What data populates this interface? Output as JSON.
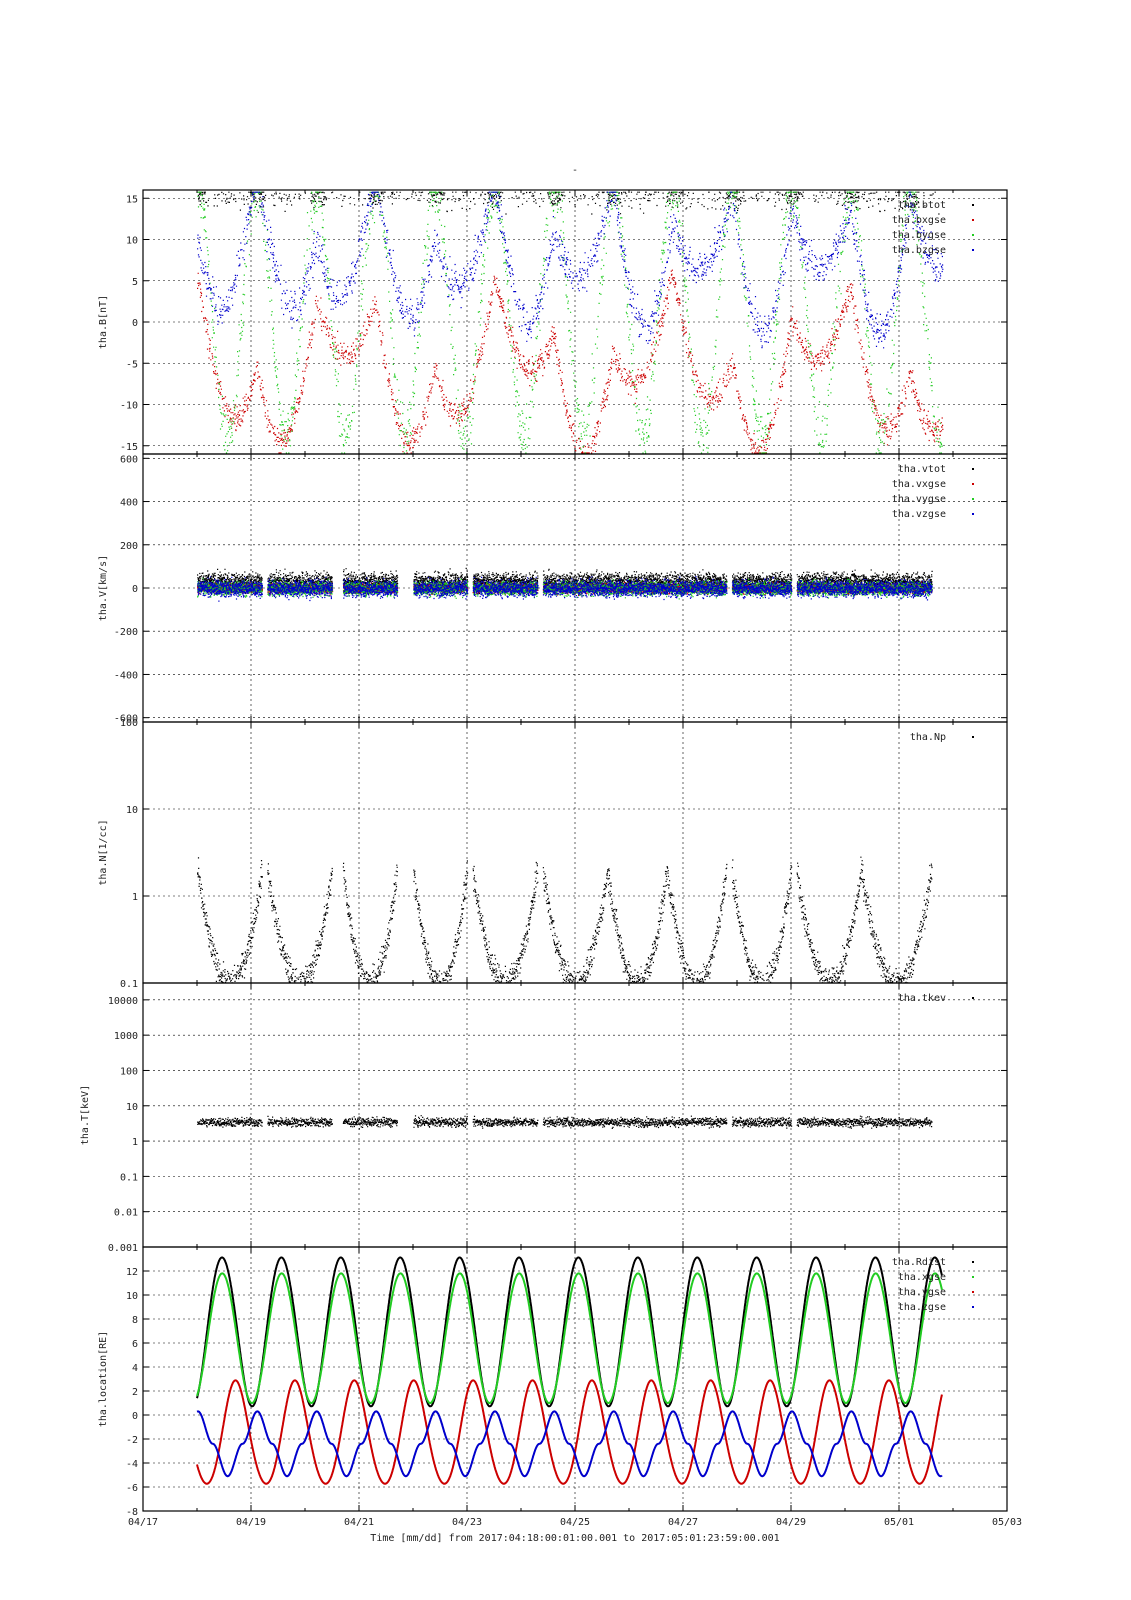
{
  "page": {
    "title": "-"
  },
  "footer": {
    "xlabel": "Time [mm/dd]  from 2017:04:18:00:01:00.001  to  2017:05:01:23:59:00.001"
  },
  "colors": {
    "black": "#000000",
    "red": "#cc0000",
    "green": "#22cc22",
    "blue": "#0000cc"
  },
  "chart_data": [
    {
      "id": "panel-b",
      "type": "scatter",
      "ylabel": "tha.B[nT]",
      "ylim": [
        -16,
        16
      ],
      "yscale": "linear",
      "yticks": [
        -15,
        -10,
        -5,
        0,
        5,
        10,
        15
      ],
      "grid": true,
      "legend_position": "top-right",
      "xdate_range": [
        "04/17",
        "05/03"
      ],
      "xticks": [
        "04/17",
        "04/19",
        "04/21",
        "04/23",
        "04/25",
        "04/27",
        "04/29",
        "05/01",
        "05/03"
      ],
      "series": [
        {
          "name": "tha.btot",
          "color": "#000000",
          "shape": "btot"
        },
        {
          "name": "tha.bxgse",
          "color": "#cc0000",
          "shape": "bx"
        },
        {
          "name": "tha.bygse",
          "color": "#22cc22",
          "shape": "by"
        },
        {
          "name": "tha.bzgse",
          "color": "#0000cc",
          "shape": "bz"
        }
      ]
    },
    {
      "id": "panel-v",
      "type": "scatter",
      "ylabel": "tha.V[km/s]",
      "ylim": [
        -620,
        620
      ],
      "yscale": "linear",
      "yticks": [
        -600,
        -400,
        -200,
        0,
        200,
        400,
        600
      ],
      "grid": true,
      "legend_position": "top-right",
      "series": [
        {
          "name": "tha.vtot",
          "color": "#000000",
          "shape": "vtot"
        },
        {
          "name": "tha.vxgse",
          "color": "#cc0000",
          "shape": "vx"
        },
        {
          "name": "tha.vygse",
          "color": "#22cc22",
          "shape": "vy"
        },
        {
          "name": "tha.vzgse",
          "color": "#0000cc",
          "shape": "vz"
        }
      ]
    },
    {
      "id": "panel-n",
      "type": "scatter",
      "ylabel": "tha.N[1/cc]",
      "ylim": [
        0.1,
        100
      ],
      "yscale": "log",
      "yticks": [
        0.1,
        1,
        10,
        100
      ],
      "ytick_labels": [
        "0.1",
        "1",
        "10",
        "100"
      ],
      "grid": true,
      "legend_position": "top-right",
      "series": [
        {
          "name": "tha.Np",
          "color": "#000000",
          "shape": "np"
        }
      ]
    },
    {
      "id": "panel-t",
      "type": "scatter",
      "ylabel": "tha.T[keV]",
      "ylim": [
        0.001,
        30000
      ],
      "yscale": "log",
      "yticks": [
        0.001,
        0.01,
        0.1,
        1,
        10,
        100,
        1000,
        10000
      ],
      "ytick_labels": [
        "0.001",
        "0.01",
        "0.1",
        "1",
        "10",
        "100",
        "1000",
        "10000"
      ],
      "grid": true,
      "legend_position": "top-right",
      "series": [
        {
          "name": "tha.tkev",
          "color": "#000000",
          "shape": "tkev"
        }
      ]
    },
    {
      "id": "panel-loc",
      "type": "line",
      "ylabel": "tha.location[RE]",
      "ylim": [
        -8,
        14
      ],
      "yscale": "linear",
      "yticks": [
        -8,
        -6,
        -4,
        -2,
        0,
        2,
        4,
        6,
        8,
        10,
        12
      ],
      "grid": true,
      "legend_position": "top-right",
      "orbit_period_days": 1.1,
      "series": [
        {
          "name": "tha.Rdist",
          "color": "#000000",
          "shape": "rdist",
          "peak": 13.4,
          "trough": 1.0
        },
        {
          "name": "tha.xgse",
          "color": "#22cc22",
          "shape": "xgse",
          "peak": 11.8,
          "trough": 1.0
        },
        {
          "name": "tha.ygse",
          "color": "#cc0000",
          "shape": "ygse",
          "peak": 2.8,
          "trough": -6.2
        },
        {
          "name": "tha.zgse",
          "color": "#0000cc",
          "shape": "zgse",
          "peak": 0.8,
          "trough": -5.2
        }
      ]
    }
  ]
}
